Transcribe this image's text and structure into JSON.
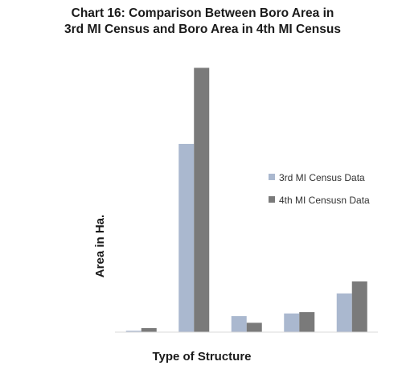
{
  "chart_data": {
    "type": "bar",
    "title_lines": [
      "Chart 16: Comparison Between Boro Area in",
      "3rd MI Census  and Boro Area in 4th MI Census"
    ],
    "xlabel": "Type of Structure",
    "ylabel": "Area in Ha.",
    "categories": [
      "",
      "",
      "",
      "",
      ""
    ],
    "series": [
      {
        "name": "3rd MI Census Data",
        "color": "#aab8cf",
        "values": [
          0.5,
          70.5,
          6,
          7,
          14.5
        ]
      },
      {
        "name": "4th MI Censusn Data",
        "color": "#7a7a7a",
        "values": [
          1.5,
          99,
          3.5,
          7.5,
          19
        ]
      }
    ],
    "ylim": [
      0,
      100
    ],
    "grid": false,
    "legend_position": "right"
  }
}
